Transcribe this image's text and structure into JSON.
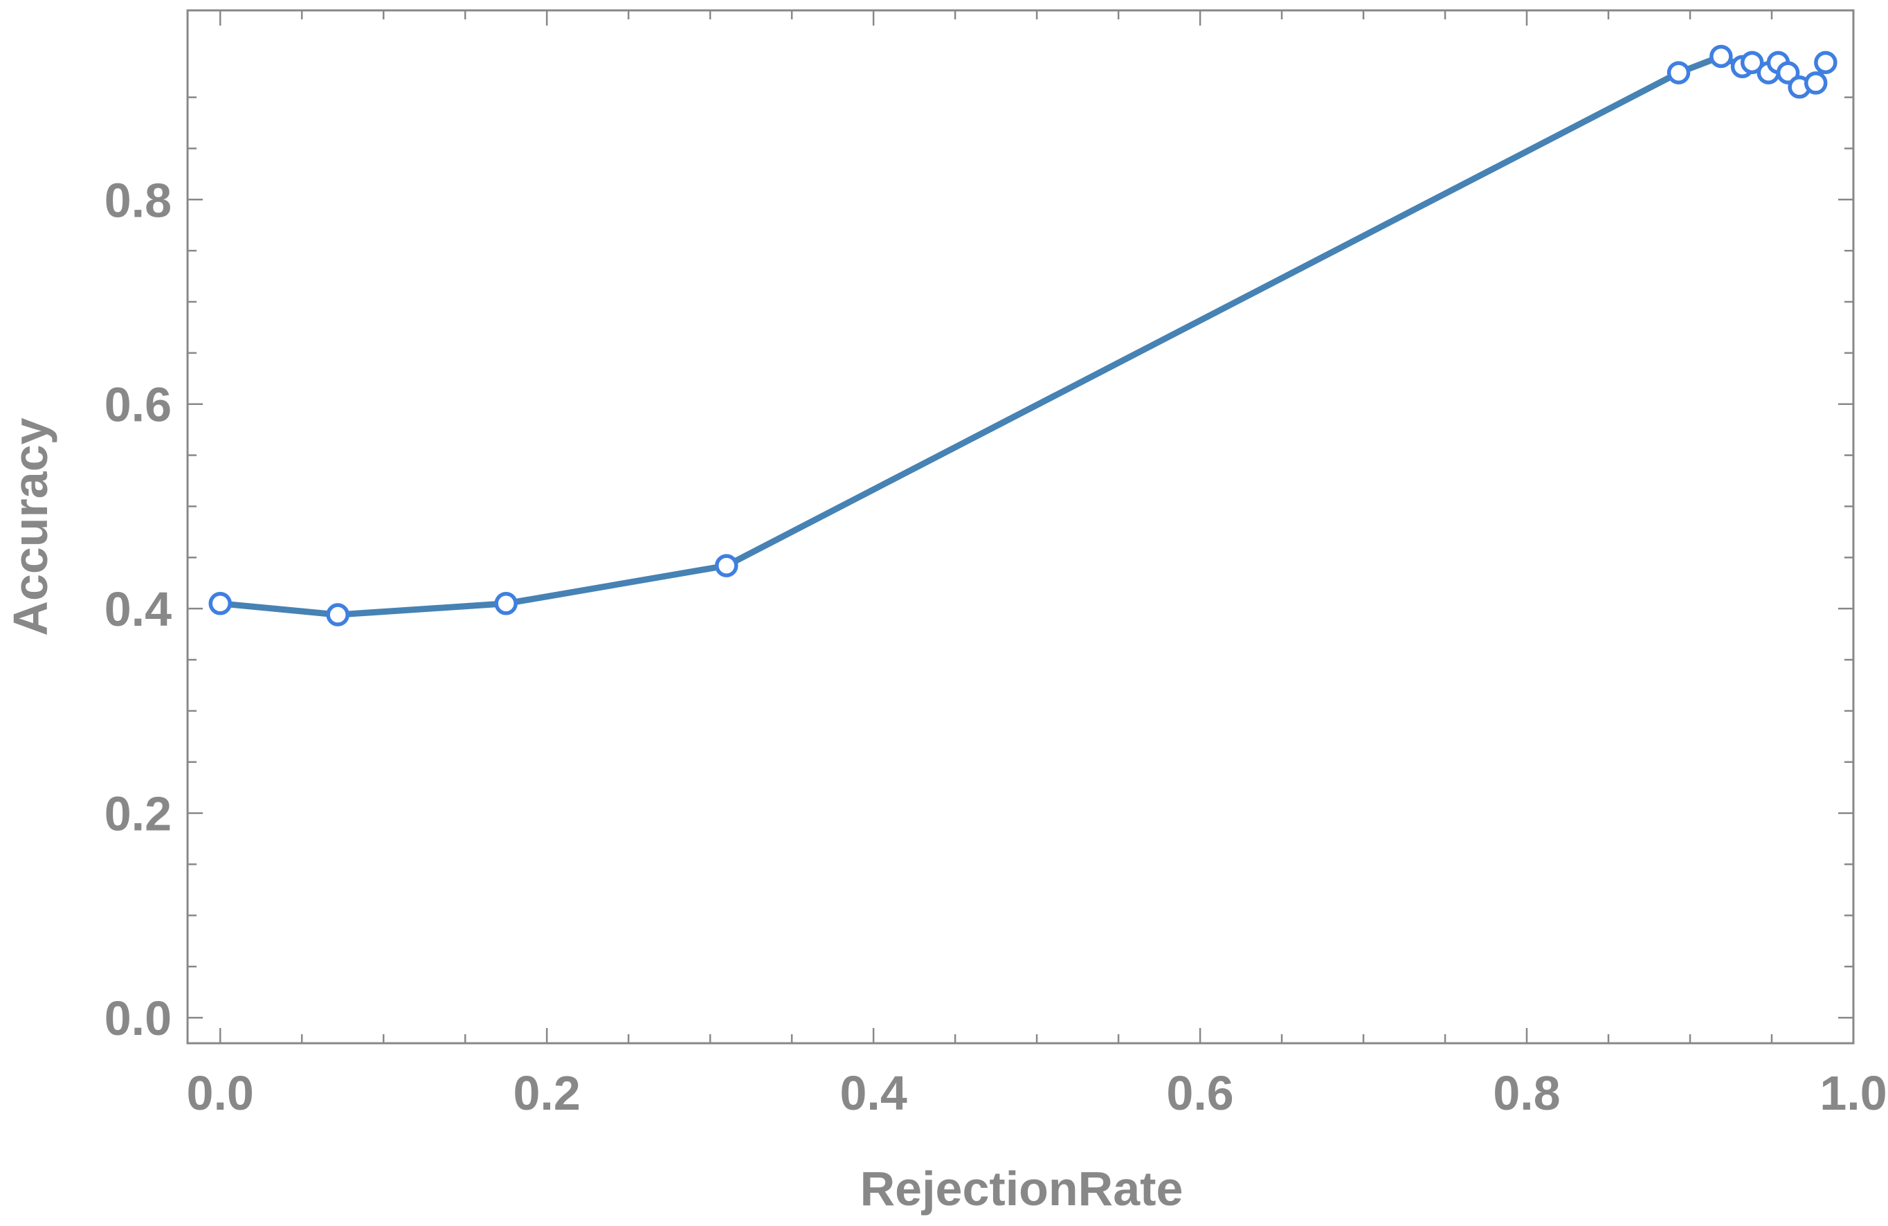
{
  "chart_data": {
    "type": "line",
    "title": "",
    "xlabel": "RejectionRate",
    "ylabel": "Accuracy",
    "xlim": [
      -0.02,
      1.0
    ],
    "ylim": [
      -0.025,
      0.985
    ],
    "x_ticks": [
      {
        "value": 0.0,
        "label": "0.0"
      },
      {
        "value": 0.2,
        "label": "0.2"
      },
      {
        "value": 0.4,
        "label": "0.4"
      },
      {
        "value": 0.6,
        "label": "0.6"
      },
      {
        "value": 0.8,
        "label": "0.8"
      },
      {
        "value": 1.0,
        "label": "1.0"
      }
    ],
    "y_ticks": [
      {
        "value": 0.0,
        "label": "0.0"
      },
      {
        "value": 0.2,
        "label": "0.2"
      },
      {
        "value": 0.4,
        "label": "0.4"
      },
      {
        "value": 0.6,
        "label": "0.6"
      },
      {
        "value": 0.8,
        "label": "0.8"
      }
    ],
    "grid": false,
    "frame": true,
    "series": [
      {
        "x": [
          0.0,
          0.072,
          0.175,
          0.31,
          0.893,
          0.919,
          0.932,
          0.938,
          0.948,
          0.954,
          0.96,
          0.967,
          0.977,
          0.983
        ],
        "y": [
          0.405,
          0.394,
          0.405,
          0.442,
          0.924,
          0.94,
          0.93,
          0.934,
          0.924,
          0.934,
          0.924,
          0.91,
          0.914,
          0.934
        ]
      }
    ],
    "colors": {
      "line": "#4682b4",
      "marker_stroke": "#3f7fe0",
      "marker_fill": "#ffffff",
      "axis": "#888888",
      "text": "#888888"
    }
  }
}
